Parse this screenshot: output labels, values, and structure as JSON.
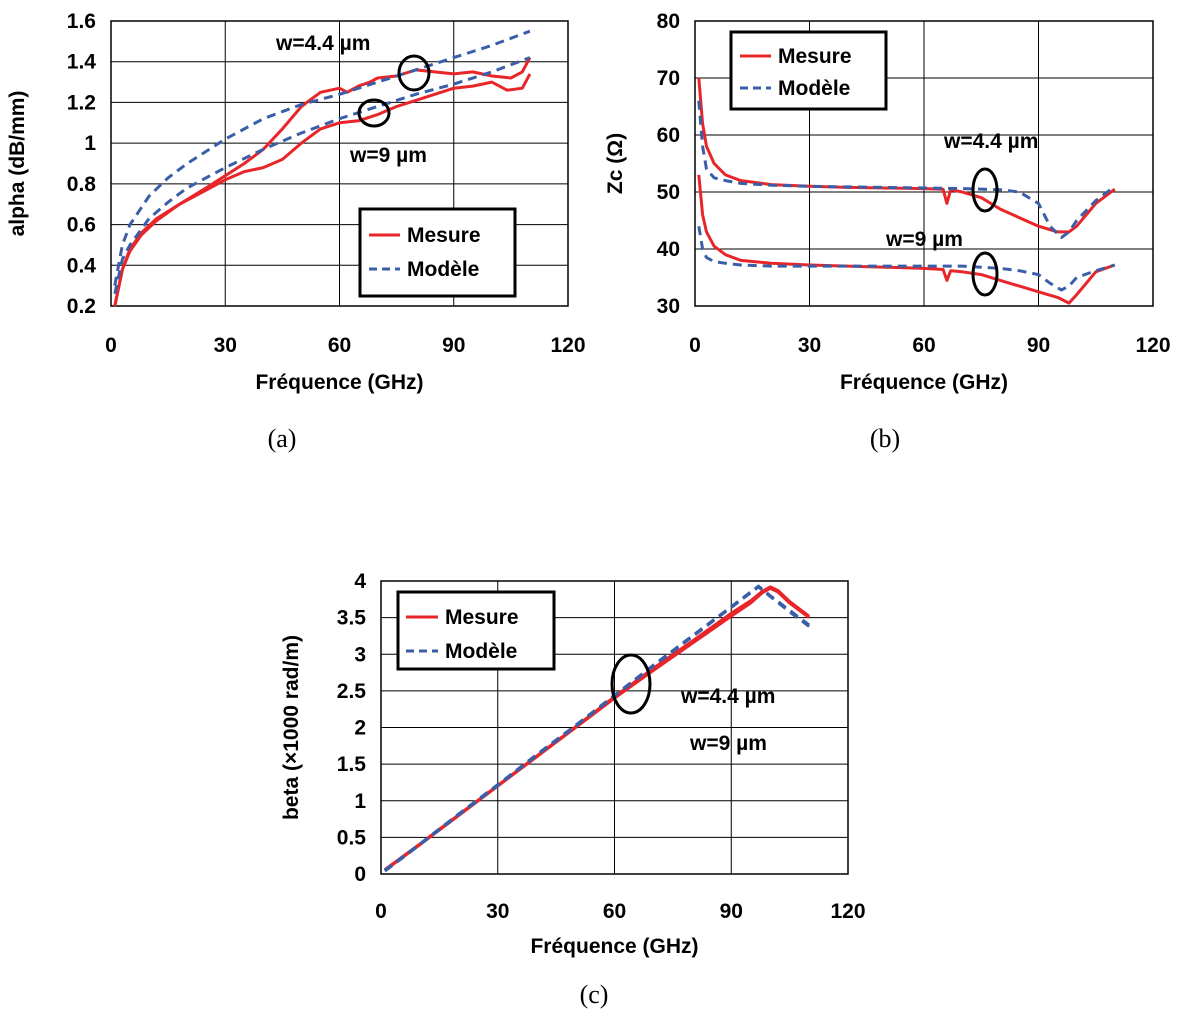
{
  "chart_data": [
    {
      "type": "line",
      "caption": "(a)",
      "xlabel": "Fréquence (GHz)",
      "ylabel": "alpha (dB/mm)",
      "xlim": [
        0,
        120
      ],
      "ylim": [
        0.2,
        1.6
      ],
      "xticks": [
        "0",
        "30",
        "60",
        "90",
        "120"
      ],
      "yticks": [
        "0.2",
        "0.4",
        "0.6",
        "0.8",
        "1",
        "1.2",
        "1.4",
        "1.6"
      ],
      "grid": true,
      "legend_position": "bottom-right",
      "legend": [
        "Mesure",
        "Modèle"
      ],
      "annotations": [
        "w=4.4 µm",
        "w=9 µm"
      ],
      "series": [
        {
          "name": "Mesure",
          "style": "solid",
          "color": "#e8262a",
          "x": [
            1,
            3,
            5,
            8,
            12,
            18,
            25,
            30,
            35,
            40,
            45,
            50,
            55,
            60,
            62,
            65,
            68,
            70,
            75,
            80,
            85,
            90,
            95,
            100,
            105,
            108,
            110
          ],
          "y": [
            0.2,
            0.38,
            0.48,
            0.56,
            0.63,
            0.7,
            0.78,
            0.84,
            0.9,
            0.97,
            1.07,
            1.18,
            1.25,
            1.27,
            1.25,
            1.28,
            1.3,
            1.32,
            1.33,
            1.36,
            1.35,
            1.34,
            1.35,
            1.33,
            1.32,
            1.35,
            1.42
          ]
        },
        {
          "name": "Mesure",
          "style": "solid",
          "color": "#e8262a",
          "x": [
            1,
            3,
            5,
            8,
            12,
            18,
            25,
            30,
            35,
            40,
            45,
            50,
            55,
            60,
            65,
            70,
            75,
            80,
            85,
            90,
            95,
            100,
            104,
            108,
            110
          ],
          "y": [
            0.2,
            0.38,
            0.47,
            0.55,
            0.62,
            0.7,
            0.77,
            0.82,
            0.86,
            0.88,
            0.92,
            1.0,
            1.07,
            1.1,
            1.11,
            1.14,
            1.18,
            1.21,
            1.24,
            1.27,
            1.28,
            1.3,
            1.26,
            1.27,
            1.34
          ]
        },
        {
          "name": "Modèle",
          "style": "dashed",
          "color": "#3a5fa8",
          "x": [
            1,
            3,
            5,
            10,
            15,
            20,
            30,
            40,
            50,
            60,
            70,
            80,
            90,
            100,
            110
          ],
          "y": [
            0.3,
            0.5,
            0.6,
            0.74,
            0.83,
            0.9,
            1.02,
            1.12,
            1.19,
            1.24,
            1.3,
            1.36,
            1.42,
            1.48,
            1.55
          ]
        },
        {
          "name": "Modèle",
          "style": "dashed",
          "color": "#3a5fa8",
          "x": [
            1,
            3,
            5,
            10,
            15,
            20,
            30,
            40,
            50,
            60,
            70,
            80,
            90,
            100,
            110
          ],
          "y": [
            0.26,
            0.43,
            0.5,
            0.63,
            0.71,
            0.78,
            0.88,
            0.97,
            1.05,
            1.12,
            1.18,
            1.24,
            1.29,
            1.35,
            1.42
          ]
        }
      ]
    },
    {
      "type": "line",
      "caption": "(b)",
      "xlabel": "Fréquence (GHz)",
      "ylabel": "Zc (Ω)",
      "xlim": [
        0,
        120
      ],
      "ylim": [
        30,
        80
      ],
      "xticks": [
        "0",
        "30",
        "60",
        "90",
        "120"
      ],
      "yticks": [
        "30",
        "40",
        "50",
        "60",
        "70",
        "80"
      ],
      "grid": true,
      "legend_position": "top-left",
      "legend": [
        "Mesure",
        "Modèle"
      ],
      "annotations": [
        "w=4.4 µm",
        "w=9 µm"
      ],
      "series": [
        {
          "name": "Mesure",
          "style": "solid",
          "color": "#e8262a",
          "x": [
            1,
            2,
            3,
            5,
            8,
            12,
            20,
            30,
            40,
            50,
            60,
            65,
            66,
            67,
            70,
            75,
            80,
            85,
            90,
            95,
            98,
            100,
            105,
            110
          ],
          "y": [
            70,
            62,
            58,
            55,
            53,
            52,
            51.3,
            51,
            50.8,
            50.7,
            50.6,
            50.5,
            48,
            50.4,
            50,
            49,
            47,
            45.5,
            44,
            43,
            43,
            44,
            48,
            50.5
          ]
        },
        {
          "name": "Mesure",
          "style": "solid",
          "color": "#e8262a",
          "x": [
            1,
            2,
            3,
            5,
            8,
            12,
            20,
            30,
            40,
            50,
            60,
            65,
            66,
            67,
            70,
            75,
            80,
            85,
            90,
            95,
            98,
            100,
            105,
            110
          ],
          "y": [
            53,
            46,
            43,
            40.5,
            39,
            38,
            37.5,
            37.2,
            37,
            36.8,
            36.6,
            36.4,
            34.5,
            36.2,
            36,
            35.5,
            34.5,
            33.5,
            32.5,
            31.5,
            30.5,
            32,
            36,
            37.2
          ]
        },
        {
          "name": "Modèle",
          "style": "dashed",
          "color": "#3a5fa8",
          "x": [
            1,
            2,
            3,
            5,
            8,
            12,
            20,
            30,
            40,
            50,
            60,
            70,
            80,
            85,
            90,
            93,
            96,
            98,
            100,
            105,
            110
          ],
          "y": [
            66,
            58,
            54,
            52.5,
            52,
            51.5,
            51.2,
            51,
            50.9,
            50.8,
            50.7,
            50.6,
            50.4,
            50,
            48,
            44,
            42,
            43,
            45,
            48.5,
            51
          ]
        },
        {
          "name": "Modèle",
          "style": "dashed",
          "color": "#3a5fa8",
          "x": [
            1,
            2,
            3,
            5,
            8,
            12,
            20,
            30,
            40,
            50,
            60,
            70,
            80,
            85,
            90,
            93,
            96,
            98,
            100,
            105,
            110
          ],
          "y": [
            44,
            40,
            38.5,
            37.8,
            37.5,
            37.2,
            37,
            37,
            37,
            37,
            37,
            37,
            36.6,
            36.2,
            35.5,
            34,
            32.8,
            33.5,
            35,
            36.2,
            37.2
          ]
        }
      ]
    },
    {
      "type": "line",
      "caption": "(c)",
      "xlabel": "Fréquence (GHz)",
      "ylabel": "beta (×1000 rad/m)",
      "xlim": [
        0,
        120
      ],
      "ylim": [
        0,
        4
      ],
      "xticks": [
        "0",
        "30",
        "60",
        "90",
        "120"
      ],
      "yticks": [
        "0",
        "0.5",
        "1",
        "1.5",
        "2",
        "2.5",
        "3",
        "3.5",
        "4"
      ],
      "grid": true,
      "legend_position": "top-left",
      "legend": [
        "Mesure",
        "Modèle"
      ],
      "annotations": [
        "w=4.4 µm",
        "w=9 µm"
      ],
      "series": [
        {
          "name": "Mesure",
          "style": "solid",
          "color": "#e8262a",
          "x": [
            1,
            10,
            20,
            30,
            40,
            50,
            60,
            70,
            80,
            90,
            95,
            98,
            100,
            102,
            105,
            108,
            110
          ],
          "y": [
            0.05,
            0.4,
            0.8,
            1.2,
            1.6,
            2.0,
            2.4,
            2.78,
            3.15,
            3.52,
            3.7,
            3.84,
            3.9,
            3.85,
            3.7,
            3.58,
            3.5
          ]
        },
        {
          "name": "Mesure",
          "style": "solid",
          "color": "#e8262a",
          "x": [
            1,
            10,
            20,
            30,
            40,
            50,
            60,
            70,
            80,
            90,
            95,
            98,
            100,
            102,
            105,
            108,
            110
          ],
          "y": [
            0.06,
            0.41,
            0.81,
            1.21,
            1.61,
            2.01,
            2.42,
            2.81,
            3.18,
            3.56,
            3.73,
            3.86,
            3.92,
            3.87,
            3.72,
            3.6,
            3.52
          ]
        },
        {
          "name": "Modèle",
          "style": "dashed",
          "color": "#3a5fa8",
          "x": [
            1,
            10,
            20,
            30,
            40,
            50,
            60,
            70,
            80,
            90,
            95,
            97,
            100,
            105,
            110
          ],
          "y": [
            0.05,
            0.41,
            0.82,
            1.22,
            1.63,
            2.03,
            2.44,
            2.85,
            3.25,
            3.65,
            3.85,
            3.93,
            3.8,
            3.6,
            3.4
          ]
        },
        {
          "name": "Modèle",
          "style": "dashed",
          "color": "#3a5fa8",
          "x": [
            1,
            10,
            20,
            30,
            40,
            50,
            60,
            70,
            80,
            90,
            95,
            97,
            100,
            105,
            110
          ],
          "y": [
            0.04,
            0.4,
            0.81,
            1.21,
            1.62,
            2.02,
            2.43,
            2.84,
            3.24,
            3.64,
            3.84,
            3.92,
            3.79,
            3.58,
            3.38
          ]
        }
      ]
    }
  ]
}
